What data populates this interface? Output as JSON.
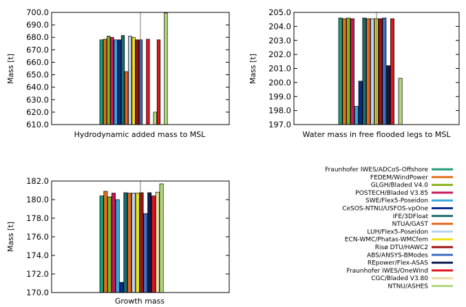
{
  "chart_data": [
    {
      "type": "bar",
      "title": "",
      "xlabel": "Hydrodynamic added mass to MSL",
      "ylabel": "Mass [t]",
      "ylim": [
        610,
        700
      ],
      "yticks": [
        610,
        620,
        630,
        640,
        650,
        660,
        670,
        680,
        690,
        700
      ],
      "grid": "vertical center line",
      "series": [
        {
          "name": "Fraunhofer IWES/ADCoS-Offshore",
          "value": 678.0
        },
        {
          "name": "FEDEM/WindPower",
          "value": 678.5
        },
        {
          "name": "GLGH/Bladed V4.0",
          "value": 681.0
        },
        {
          "name": "POSTECH/Bladed V3.85",
          "value": 680.0
        },
        {
          "name": "SWE/Flex5-Poseidon",
          "value": 678.0
        },
        {
          "name": "CeSOS-NTNU/USFOS-vpOne",
          "value": 678.0
        },
        {
          "name": "IFE/3DFloat",
          "value": 681.5
        },
        {
          "name": "NTUA/GAST",
          "value": 652.5
        },
        {
          "name": "LUH/Flex5-Poseidon",
          "value": 681.0
        },
        {
          "name": "ECN-WMC/Phatas-WMCfem",
          "value": 680.0
        },
        {
          "name": "Risø DTU/HAWC2",
          "value": 678.0
        },
        {
          "name": "ABS/ANSYS-BModes",
          "value": 678.0
        },
        {
          "name": "REpower/Flex-ASAS",
          "value": null
        },
        {
          "name": "Fraunhofer IWES/OneWind",
          "value": 678.5
        },
        {
          "name": "CGC/Bladed V3.80",
          "value": null
        },
        {
          "name": "NTNU/ASHES",
          "value": 620.0
        },
        {
          "name": "_r1",
          "value": 678.0
        },
        {
          "name": "_r2",
          "value": null
        },
        {
          "name": "_r3",
          "value": 699.5
        }
      ]
    },
    {
      "type": "bar",
      "title": "",
      "xlabel": "Water mass in free flooded legs to MSL",
      "ylabel": "Mass [t]",
      "ylim": [
        197,
        205
      ],
      "yticks": [
        197.0,
        198.0,
        199.0,
        200.0,
        201.0,
        202.0,
        203.0,
        204.0,
        205.0
      ],
      "grid": "vertical center line",
      "series": [
        {
          "name": "Fraunhofer IWES/ADCoS-Offshore",
          "value": 204.6
        },
        {
          "name": "FEDEM/WindPower",
          "value": 204.55
        },
        {
          "name": "GLGH/Bladed V4.0",
          "value": 204.6
        },
        {
          "name": "POSTECH/Bladed V3.85",
          "value": 204.55
        },
        {
          "name": "SWE/Flex5-Poseidon",
          "value": 198.3
        },
        {
          "name": "CeSOS-NTNU/USFOS-vpOne",
          "value": 200.1
        },
        {
          "name": "IFE/3DFloat",
          "value": 204.6
        },
        {
          "name": "NTUA/GAST",
          "value": 204.55
        },
        {
          "name": "LUH/Flex5-Poseidon",
          "value": 204.55
        },
        {
          "name": "ECN-WMC/Phatas-WMCfem",
          "value": 204.55
        },
        {
          "name": "Risø DTU/HAWC2",
          "value": 204.55
        },
        {
          "name": "ABS/ANSYS-BModes",
          "value": 204.6
        },
        {
          "name": "REpower/Flex-ASAS",
          "value": 201.2
        },
        {
          "name": "Fraunhofer IWES/OneWind",
          "value": 204.55
        },
        {
          "name": "CGC/Bladed V3.80",
          "value": null
        },
        {
          "name": "NTNU/ASHES",
          "value": 200.3
        }
      ]
    },
    {
      "type": "bar",
      "title": "",
      "xlabel": "Growth mass",
      "ylabel": "Mass [t]",
      "ylim": [
        170,
        182
      ],
      "yticks": [
        170.0,
        172.0,
        174.0,
        176.0,
        178.0,
        180.0,
        182.0
      ],
      "grid": "vertical center line",
      "series": [
        {
          "name": "Fraunhofer IWES/ADCoS-Offshore",
          "value": 180.4
        },
        {
          "name": "FEDEM/WindPower",
          "value": 180.9
        },
        {
          "name": "GLGH/Bladed V4.0",
          "value": 180.3
        },
        {
          "name": "POSTECH/Bladed V3.85",
          "value": 180.7
        },
        {
          "name": "SWE/Flex5-Poseidon",
          "value": 180.0
        },
        {
          "name": "CeSOS-NTNU/USFOS-vpOne",
          "value": 171.1
        },
        {
          "name": "IFE/3DFloat",
          "value": 180.75
        },
        {
          "name": "NTUA/GAST",
          "value": 180.7
        },
        {
          "name": "LUH/Flex5-Poseidon",
          "value": 180.7
        },
        {
          "name": "ECN-WMC/Phatas-WMCfem",
          "value": 180.7
        },
        {
          "name": "Risø DTU/HAWC2",
          "value": 180.75
        },
        {
          "name": "ABS/ANSYS-BModes",
          "value": 178.5
        },
        {
          "name": "REpower/Flex-ASAS",
          "value": 180.75
        },
        {
          "name": "Fraunhofer IWES/OneWind",
          "value": 180.4
        },
        {
          "name": "CGC/Bladed V3.80",
          "value": 180.8
        },
        {
          "name": "NTNU/ASHES",
          "value": 181.7
        }
      ]
    }
  ],
  "legend": {
    "placement": "bottom-right",
    "entries": [
      {
        "name": "Fraunhofer IWES/ADCoS-Offshore",
        "color": "#1a9c74"
      },
      {
        "name": "FEDEM/WindPower",
        "color": "#e3701b"
      },
      {
        "name": "GLGH/Bladed V4.0",
        "color": "#8ab21c"
      },
      {
        "name": "POSTECH/Bladed V3.85",
        "color": "#c8185a"
      },
      {
        "name": "SWE/Flex5-Poseidon",
        "color": "#3aa6dc"
      },
      {
        "name": "CeSOS-NTNU/USFOS-vpOne",
        "color": "#0b2c8c"
      },
      {
        "name": "IFE/3DFloat",
        "color": "#1a6a6a"
      },
      {
        "name": "NTUA/GAST",
        "color": "#e8661c"
      },
      {
        "name": "LUH/Flex5-Poseidon",
        "color": "#b9d2ee"
      },
      {
        "name": "ECN-WMC/Phatas-WMCfem",
        "color": "#f2e21a"
      },
      {
        "name": "Risø DTU/HAWC2",
        "color": "#9c1212"
      },
      {
        "name": "ABS/ANSYS-BModes",
        "color": "#3f6fc0"
      },
      {
        "name": "REpower/Flex-ASAS",
        "color": "#0c1a4c"
      },
      {
        "name": "Fraunhofer IWES/OneWind",
        "color": "#e2141c"
      },
      {
        "name": "CGC/Bladed V3.80",
        "color": "#e8dca0"
      },
      {
        "name": "NTNU/ASHES",
        "color": "#b3d77a"
      }
    ]
  }
}
